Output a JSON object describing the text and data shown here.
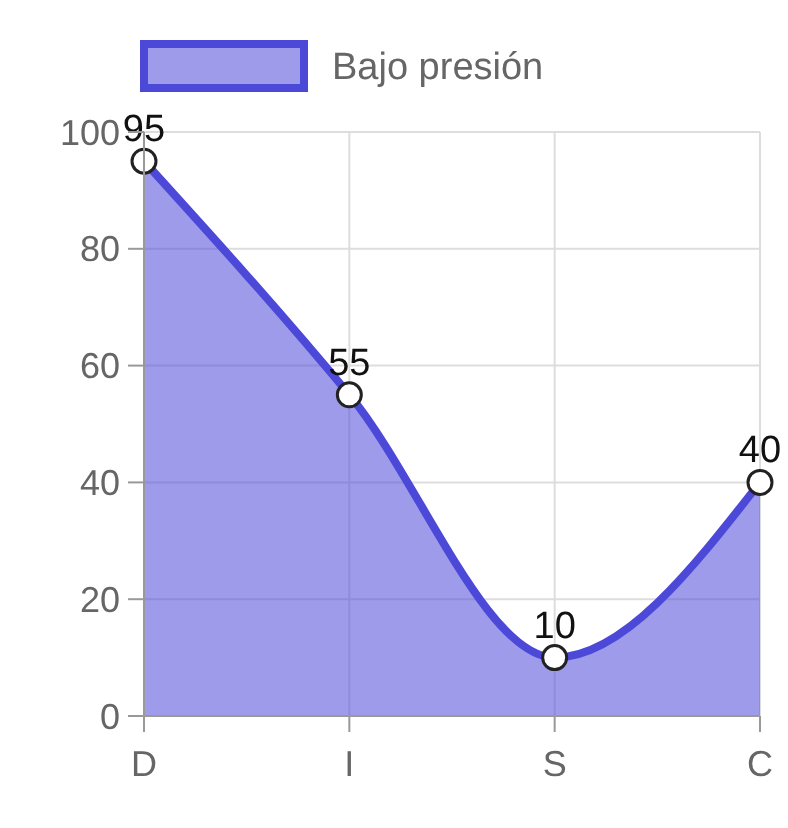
{
  "chart_data": {
    "type": "area",
    "categories": [
      "D",
      "I",
      "S",
      "C"
    ],
    "series": [
      {
        "name": "Bajo presión",
        "color": "#4c48d8",
        "values": [
          95,
          55,
          10,
          40
        ]
      }
    ],
    "ylim": [
      0,
      100
    ],
    "yticks": [
      0,
      20,
      40,
      60,
      80,
      100
    ],
    "grid": true,
    "legend": "top",
    "marker": "circle",
    "data_labels": true
  }
}
